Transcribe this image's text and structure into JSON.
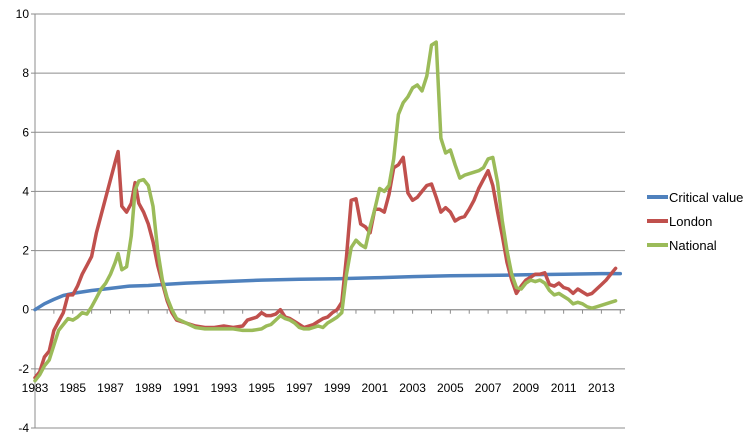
{
  "chart_data": {
    "type": "line",
    "title": "",
    "xlabel": "",
    "ylabel": "",
    "xlim": [
      1983,
      2014.25
    ],
    "ylim": [
      -4,
      10
    ],
    "grid": "horizontal",
    "legend_position": "right",
    "y_ticks": [
      "-4",
      "-2",
      "0",
      "2",
      "4",
      "6",
      "8",
      "10"
    ],
    "x_ticks": [
      "1983",
      "1985",
      "1987",
      "1989",
      "1991",
      "1993",
      "1995",
      "1997",
      "1999",
      "2001",
      "2003",
      "2005",
      "2007",
      "2009",
      "2011",
      "2013"
    ],
    "series": [
      {
        "name": "Critical value",
        "color": "#4f81bd",
        "points": [
          [
            1983.0,
            0.0
          ],
          [
            1983.5,
            0.2
          ],
          [
            1984.0,
            0.35
          ],
          [
            1984.5,
            0.48
          ],
          [
            1985.0,
            0.55
          ],
          [
            1986.0,
            0.65
          ],
          [
            1987.0,
            0.72
          ],
          [
            1988.0,
            0.8
          ],
          [
            1989.0,
            0.82
          ],
          [
            1990.0,
            0.86
          ],
          [
            1991.0,
            0.9
          ],
          [
            1993.0,
            0.95
          ],
          [
            1995.0,
            1.0
          ],
          [
            1997.0,
            1.03
          ],
          [
            1999.0,
            1.05
          ],
          [
            2001.0,
            1.08
          ],
          [
            2003.0,
            1.12
          ],
          [
            2005.0,
            1.15
          ],
          [
            2007.0,
            1.16
          ],
          [
            2009.0,
            1.18
          ],
          [
            2011.0,
            1.2
          ],
          [
            2013.0,
            1.22
          ],
          [
            2014.0,
            1.22
          ]
        ]
      },
      {
        "name": "London",
        "color": "#c0504d",
        "points": [
          [
            1983.0,
            -2.3
          ],
          [
            1983.25,
            -2.1
          ],
          [
            1983.5,
            -1.6
          ],
          [
            1983.75,
            -1.4
          ],
          [
            1984.0,
            -0.7
          ],
          [
            1984.25,
            -0.4
          ],
          [
            1984.5,
            -0.1
          ],
          [
            1984.75,
            0.5
          ],
          [
            1985.0,
            0.5
          ],
          [
            1985.25,
            0.8
          ],
          [
            1985.5,
            1.2
          ],
          [
            1985.75,
            1.5
          ],
          [
            1986.0,
            1.8
          ],
          [
            1986.25,
            2.6
          ],
          [
            1986.5,
            3.2
          ],
          [
            1986.75,
            3.8
          ],
          [
            1987.0,
            4.4
          ],
          [
            1987.25,
            5.0
          ],
          [
            1987.4,
            5.35
          ],
          [
            1987.6,
            3.5
          ],
          [
            1987.85,
            3.3
          ],
          [
            1988.1,
            3.6
          ],
          [
            1988.3,
            4.3
          ],
          [
            1988.5,
            3.6
          ],
          [
            1988.75,
            3.3
          ],
          [
            1989.0,
            2.9
          ],
          [
            1989.25,
            2.3
          ],
          [
            1989.5,
            1.5
          ],
          [
            1989.75,
            0.9
          ],
          [
            1990.0,
            0.3
          ],
          [
            1990.25,
            -0.1
          ],
          [
            1990.5,
            -0.35
          ],
          [
            1991.0,
            -0.45
          ],
          [
            1991.5,
            -0.55
          ],
          [
            1992.0,
            -0.6
          ],
          [
            1992.5,
            -0.6
          ],
          [
            1993.0,
            -0.55
          ],
          [
            1993.5,
            -0.6
          ],
          [
            1994.0,
            -0.55
          ],
          [
            1994.25,
            -0.35
          ],
          [
            1994.5,
            -0.3
          ],
          [
            1994.75,
            -0.25
          ],
          [
            1995.0,
            -0.1
          ],
          [
            1995.25,
            -0.2
          ],
          [
            1995.5,
            -0.2
          ],
          [
            1995.75,
            -0.15
          ],
          [
            1996.0,
            0.0
          ],
          [
            1996.25,
            -0.25
          ],
          [
            1996.5,
            -0.3
          ],
          [
            1996.75,
            -0.4
          ],
          [
            1997.0,
            -0.5
          ],
          [
            1997.25,
            -0.6
          ],
          [
            1997.5,
            -0.55
          ],
          [
            1997.75,
            -0.5
          ],
          [
            1998.0,
            -0.4
          ],
          [
            1998.25,
            -0.3
          ],
          [
            1998.5,
            -0.25
          ],
          [
            1998.75,
            -0.1
          ],
          [
            1999.0,
            0.0
          ],
          [
            1999.25,
            0.25
          ],
          [
            1999.5,
            1.8
          ],
          [
            1999.75,
            3.7
          ],
          [
            2000.0,
            3.75
          ],
          [
            2000.25,
            2.9
          ],
          [
            2000.5,
            2.8
          ],
          [
            2000.75,
            2.6
          ],
          [
            2001.0,
            3.4
          ],
          [
            2001.25,
            3.4
          ],
          [
            2001.5,
            3.3
          ],
          [
            2001.75,
            3.9
          ],
          [
            2002.0,
            4.8
          ],
          [
            2002.25,
            4.9
          ],
          [
            2002.5,
            5.15
          ],
          [
            2002.75,
            3.95
          ],
          [
            2003.0,
            3.7
          ],
          [
            2003.25,
            3.8
          ],
          [
            2003.5,
            4.0
          ],
          [
            2003.75,
            4.2
          ],
          [
            2004.0,
            4.25
          ],
          [
            2004.25,
            3.8
          ],
          [
            2004.5,
            3.3
          ],
          [
            2004.75,
            3.45
          ],
          [
            2005.0,
            3.3
          ],
          [
            2005.25,
            3.0
          ],
          [
            2005.5,
            3.1
          ],
          [
            2005.75,
            3.15
          ],
          [
            2006.0,
            3.4
          ],
          [
            2006.25,
            3.7
          ],
          [
            2006.5,
            4.1
          ],
          [
            2006.75,
            4.4
          ],
          [
            2007.0,
            4.7
          ],
          [
            2007.25,
            4.2
          ],
          [
            2007.5,
            3.3
          ],
          [
            2007.75,
            2.5
          ],
          [
            2008.0,
            1.6
          ],
          [
            2008.25,
            1.0
          ],
          [
            2008.5,
            0.55
          ],
          [
            2008.75,
            0.8
          ],
          [
            2009.0,
            1.0
          ],
          [
            2009.25,
            1.1
          ],
          [
            2009.5,
            1.2
          ],
          [
            2009.75,
            1.2
          ],
          [
            2010.0,
            1.25
          ],
          [
            2010.25,
            0.85
          ],
          [
            2010.5,
            0.8
          ],
          [
            2010.75,
            0.9
          ],
          [
            2011.0,
            0.75
          ],
          [
            2011.25,
            0.7
          ],
          [
            2011.5,
            0.55
          ],
          [
            2011.75,
            0.7
          ],
          [
            2012.0,
            0.6
          ],
          [
            2012.25,
            0.5
          ],
          [
            2012.5,
            0.55
          ],
          [
            2012.75,
            0.7
          ],
          [
            2013.0,
            0.85
          ],
          [
            2013.25,
            1.0
          ],
          [
            2013.5,
            1.2
          ],
          [
            2013.75,
            1.4
          ]
        ]
      },
      {
        "name": "National",
        "color": "#9bbb59",
        "points": [
          [
            1983.0,
            -2.4
          ],
          [
            1983.25,
            -2.2
          ],
          [
            1983.5,
            -1.9
          ],
          [
            1983.75,
            -1.7
          ],
          [
            1984.0,
            -1.2
          ],
          [
            1984.25,
            -0.7
          ],
          [
            1984.5,
            -0.5
          ],
          [
            1984.75,
            -0.3
          ],
          [
            1985.0,
            -0.35
          ],
          [
            1985.25,
            -0.25
          ],
          [
            1985.5,
            -0.1
          ],
          [
            1985.75,
            -0.15
          ],
          [
            1986.0,
            0.1
          ],
          [
            1986.25,
            0.4
          ],
          [
            1986.5,
            0.7
          ],
          [
            1986.75,
            0.9
          ],
          [
            1987.0,
            1.2
          ],
          [
            1987.25,
            1.6
          ],
          [
            1987.4,
            1.9
          ],
          [
            1987.6,
            1.35
          ],
          [
            1987.85,
            1.45
          ],
          [
            1988.1,
            2.5
          ],
          [
            1988.3,
            4.05
          ],
          [
            1988.5,
            4.35
          ],
          [
            1988.75,
            4.4
          ],
          [
            1989.0,
            4.2
          ],
          [
            1989.25,
            3.5
          ],
          [
            1989.5,
            2.0
          ],
          [
            1989.75,
            1.0
          ],
          [
            1990.0,
            0.4
          ],
          [
            1990.25,
            0.0
          ],
          [
            1990.5,
            -0.3
          ],
          [
            1991.0,
            -0.45
          ],
          [
            1991.5,
            -0.6
          ],
          [
            1992.0,
            -0.65
          ],
          [
            1992.5,
            -0.65
          ],
          [
            1993.0,
            -0.65
          ],
          [
            1993.5,
            -0.65
          ],
          [
            1994.0,
            -0.7
          ],
          [
            1994.5,
            -0.7
          ],
          [
            1995.0,
            -0.65
          ],
          [
            1995.25,
            -0.55
          ],
          [
            1995.5,
            -0.5
          ],
          [
            1995.75,
            -0.35
          ],
          [
            1996.0,
            -0.2
          ],
          [
            1996.25,
            -0.3
          ],
          [
            1996.5,
            -0.35
          ],
          [
            1996.75,
            -0.45
          ],
          [
            1997.0,
            -0.6
          ],
          [
            1997.25,
            -0.65
          ],
          [
            1997.5,
            -0.65
          ],
          [
            1997.75,
            -0.6
          ],
          [
            1998.0,
            -0.55
          ],
          [
            1998.25,
            -0.6
          ],
          [
            1998.5,
            -0.45
          ],
          [
            1998.75,
            -0.35
          ],
          [
            1999.0,
            -0.25
          ],
          [
            1999.25,
            -0.1
          ],
          [
            1999.5,
            1.2
          ],
          [
            1999.75,
            2.1
          ],
          [
            2000.0,
            2.35
          ],
          [
            2000.25,
            2.2
          ],
          [
            2000.5,
            2.1
          ],
          [
            2000.75,
            2.8
          ],
          [
            2001.0,
            3.4
          ],
          [
            2001.25,
            4.1
          ],
          [
            2001.5,
            4.0
          ],
          [
            2001.75,
            4.2
          ],
          [
            2002.0,
            5.1
          ],
          [
            2002.25,
            6.6
          ],
          [
            2002.5,
            7.0
          ],
          [
            2002.75,
            7.2
          ],
          [
            2003.0,
            7.5
          ],
          [
            2003.25,
            7.6
          ],
          [
            2003.5,
            7.4
          ],
          [
            2003.75,
            7.9
          ],
          [
            2004.0,
            8.95
          ],
          [
            2004.25,
            9.05
          ],
          [
            2004.5,
            5.8
          ],
          [
            2004.75,
            5.3
          ],
          [
            2005.0,
            5.4
          ],
          [
            2005.25,
            4.9
          ],
          [
            2005.5,
            4.45
          ],
          [
            2005.75,
            4.55
          ],
          [
            2006.0,
            4.6
          ],
          [
            2006.25,
            4.65
          ],
          [
            2006.5,
            4.7
          ],
          [
            2006.75,
            4.8
          ],
          [
            2007.0,
            5.1
          ],
          [
            2007.25,
            5.15
          ],
          [
            2007.5,
            4.3
          ],
          [
            2007.75,
            3.0
          ],
          [
            2008.0,
            2.0
          ],
          [
            2008.25,
            1.2
          ],
          [
            2008.5,
            0.75
          ],
          [
            2008.75,
            0.7
          ],
          [
            2009.0,
            0.9
          ],
          [
            2009.25,
            1.0
          ],
          [
            2009.5,
            0.95
          ],
          [
            2009.75,
            1.0
          ],
          [
            2010.0,
            0.9
          ],
          [
            2010.25,
            0.65
          ],
          [
            2010.5,
            0.5
          ],
          [
            2010.75,
            0.55
          ],
          [
            2011.0,
            0.45
          ],
          [
            2011.25,
            0.35
          ],
          [
            2011.5,
            0.2
          ],
          [
            2011.75,
            0.25
          ],
          [
            2012.0,
            0.2
          ],
          [
            2012.25,
            0.1
          ],
          [
            2012.5,
            0.05
          ],
          [
            2012.75,
            0.1
          ],
          [
            2013.0,
            0.15
          ],
          [
            2013.25,
            0.2
          ],
          [
            2013.5,
            0.25
          ],
          [
            2013.75,
            0.3
          ]
        ]
      }
    ]
  }
}
